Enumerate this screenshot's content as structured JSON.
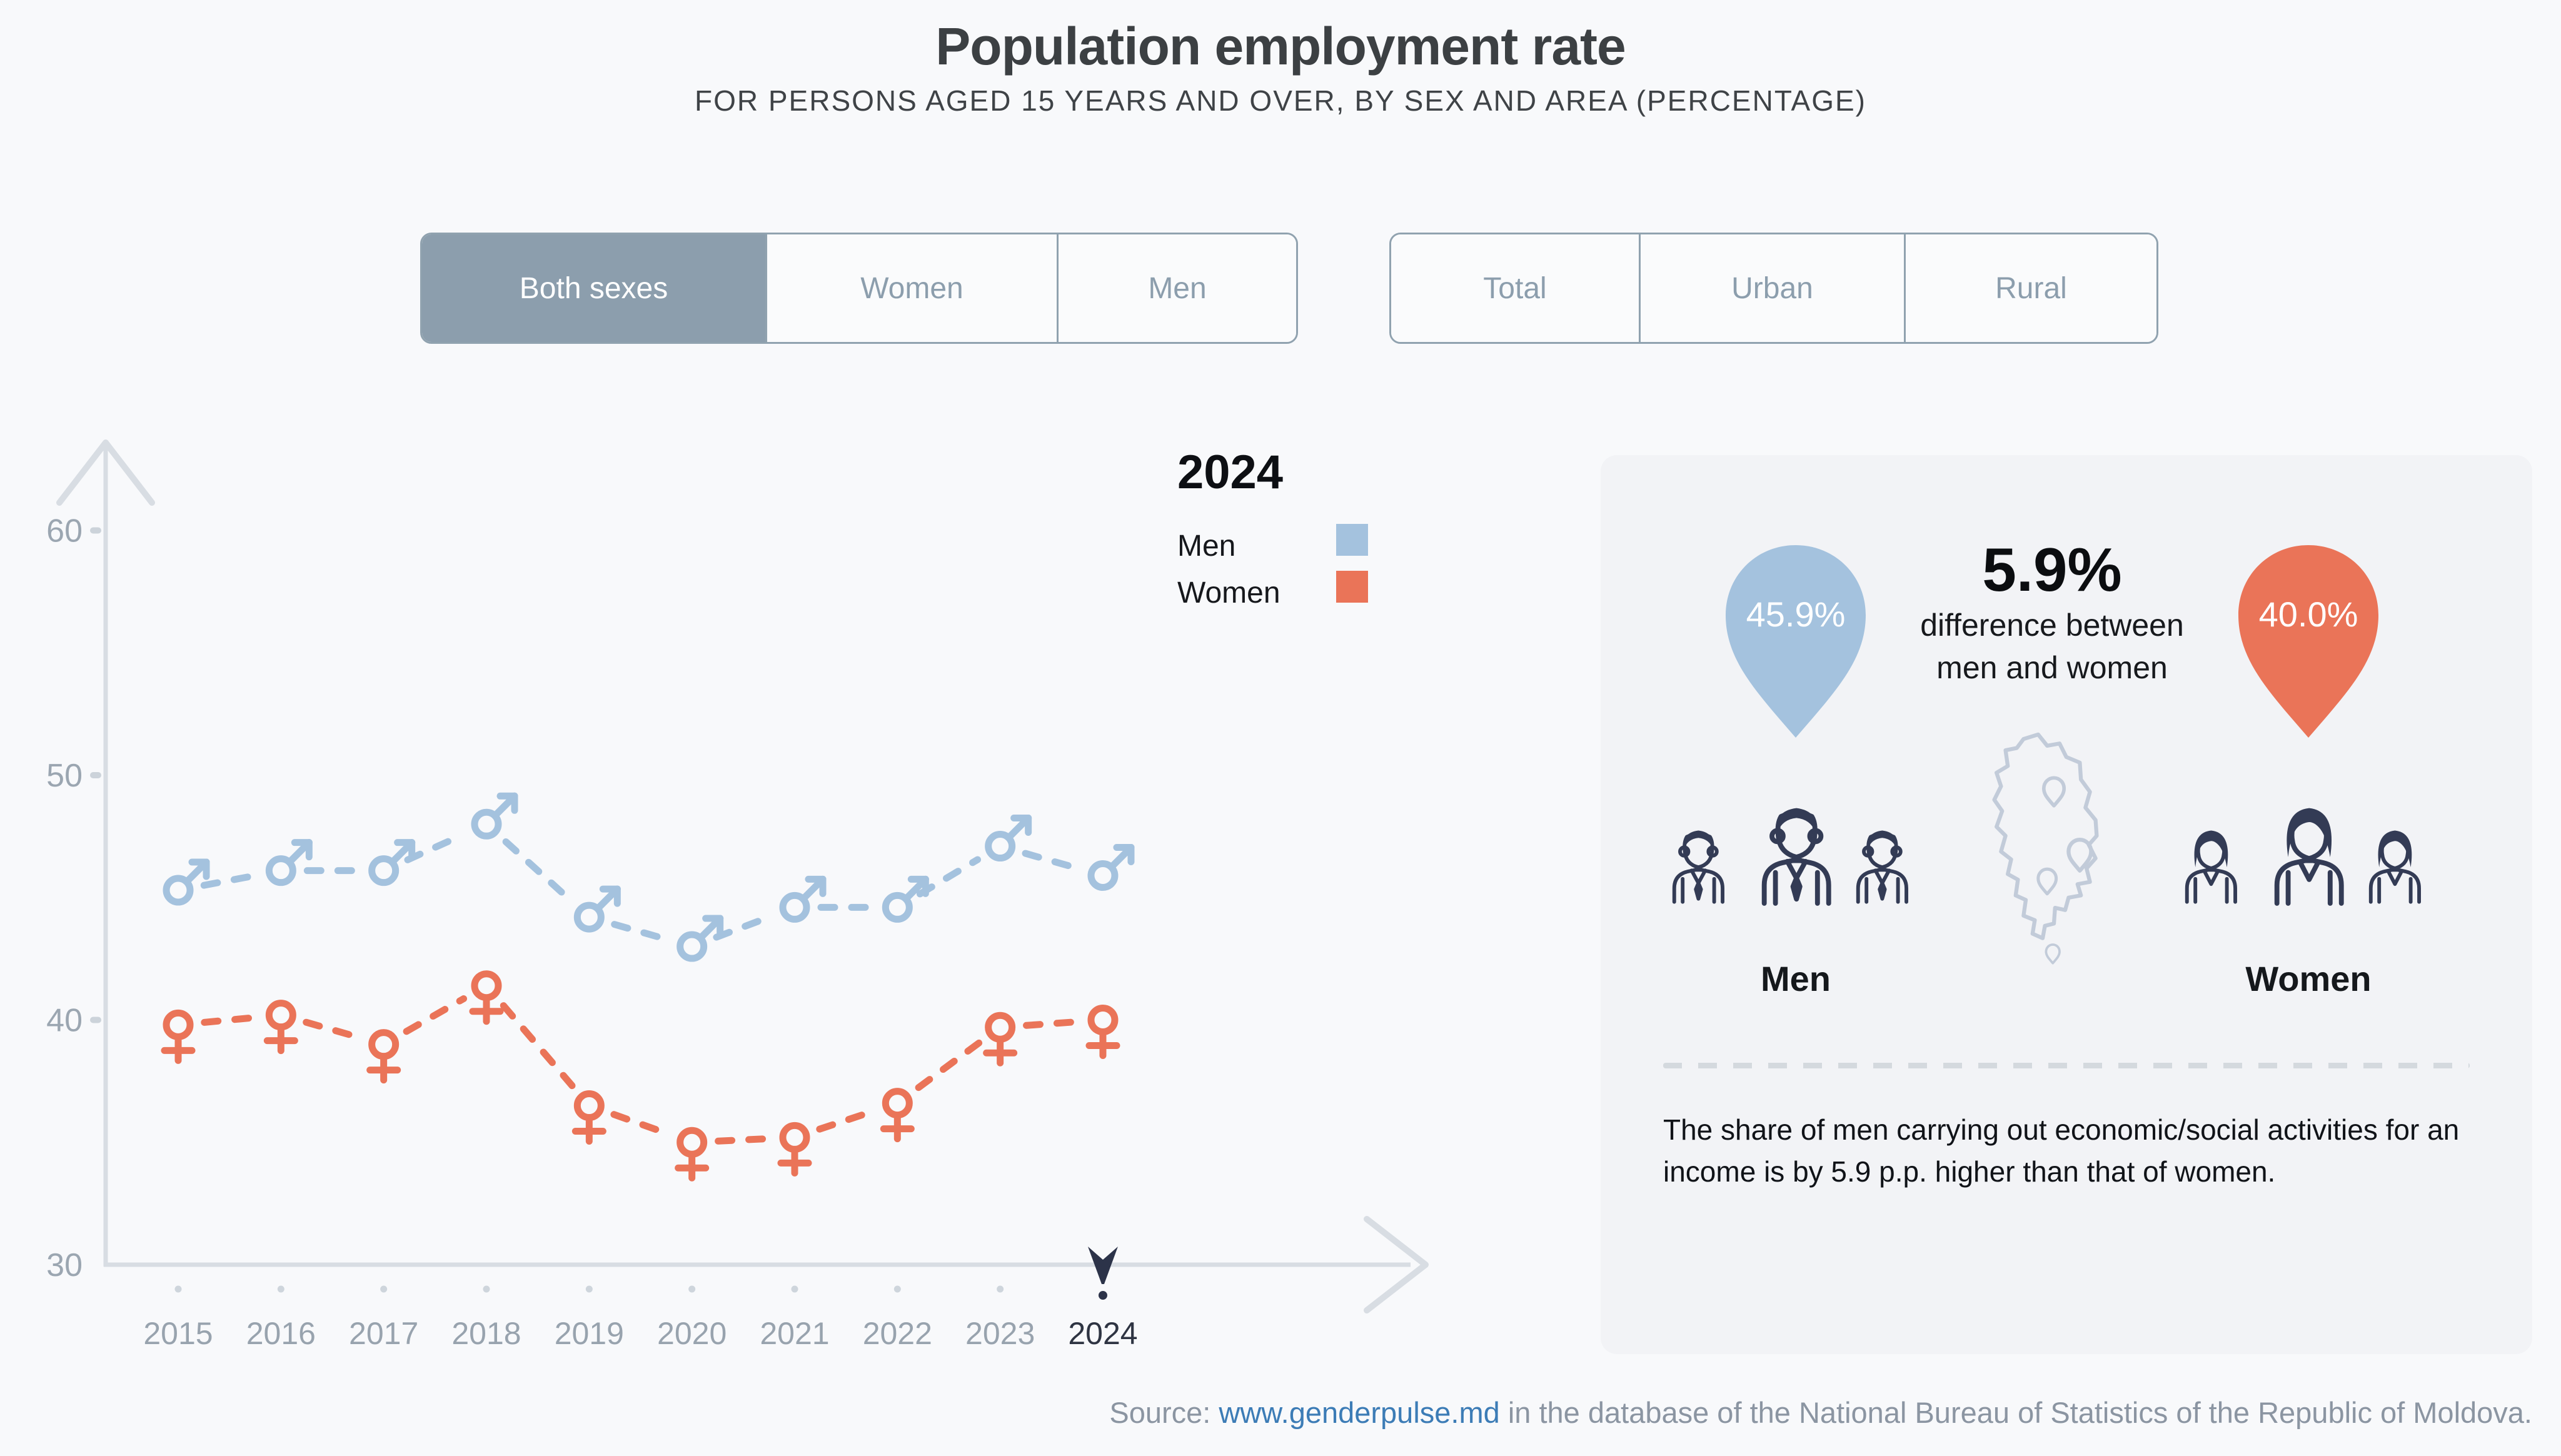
{
  "header": {
    "title": "Population employment rate",
    "subtitle": "FOR PERSONS AGED 15 YEARS AND OVER, BY SEX AND AREA (PERCENTAGE)"
  },
  "controls": {
    "sex": {
      "options": [
        "Both sexes",
        "Women",
        "Men"
      ],
      "active": "Both sexes"
    },
    "area": {
      "options": [
        "Total",
        "Urban",
        "Rural"
      ],
      "active": ""
    }
  },
  "legend": {
    "year": "2024",
    "items": [
      {
        "label": "Men",
        "color": "#a4c2de"
      },
      {
        "label": "Women",
        "color": "#ea7458"
      }
    ]
  },
  "chart_data": {
    "type": "line",
    "categories": [
      "2015",
      "2016",
      "2017",
      "2018",
      "2019",
      "2020",
      "2021",
      "2022",
      "2023",
      "2024"
    ],
    "series": [
      {
        "name": "Men",
        "color": "#a4c2de",
        "marker": "male",
        "values": [
          45.3,
          46.1,
          46.1,
          48.0,
          44.2,
          43.0,
          44.6,
          44.6,
          47.1,
          45.9
        ]
      },
      {
        "name": "Women",
        "color": "#ea7458",
        "marker": "female",
        "values": [
          39.8,
          40.2,
          39.0,
          41.4,
          36.5,
          35.0,
          35.2,
          36.6,
          39.7,
          40.0
        ]
      }
    ],
    "ylim": [
      30,
      62
    ],
    "y_ticks": [
      60,
      50,
      40,
      30
    ],
    "grid": false,
    "line_style": "dashed",
    "selected_category": "2024",
    "legend_position": "top-right"
  },
  "panel": {
    "men_value": "45.9%",
    "women_value": "40.0%",
    "diff_value": "5.9%",
    "diff_caption_line1": "difference between",
    "diff_caption_line2": "men and women",
    "men_label": "Men",
    "women_label": "Women",
    "men_color": "#a4c2de",
    "women_color": "#ea7458",
    "note": "The share of men carrying out economic/social activities for an income is by 5.9 p.p. higher than that of women."
  },
  "source": {
    "prefix": "Source: ",
    "link": "www.genderpulse.md",
    "suffix": " in the database of the National Bureau of Statistics of the Republic of Moldova."
  },
  "colors": {
    "page_bg": "#f8f9fb",
    "panel_bg": "#f2f3f6",
    "axis": "#d8dde3",
    "tick": "#ccd3da",
    "axis_label": "#9ba6b1",
    "year_label": "#98a3ae",
    "year_selected": "#2e3442",
    "dot": "#ced5dc",
    "marker_dark": "#2c3349",
    "icon_navy": "#333b55",
    "map_outline": "#c2cbd9",
    "active_control_bg": "#8c9ead"
  }
}
